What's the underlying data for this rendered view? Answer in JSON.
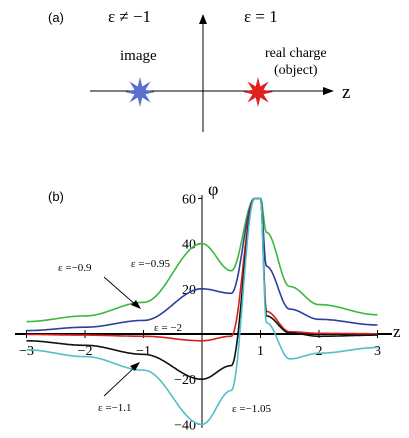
{
  "panel_a": {
    "label": "(a)",
    "eps_left": "ε ≠ −1",
    "eps_right": "ε  = 1",
    "image_label": "image",
    "real_label_1": "real charge",
    "real_label_2": "(object)",
    "axis_label": "z",
    "colors": {
      "image_star": "#5a6fcf",
      "real_star": "#e02020"
    }
  },
  "panel_b": {
    "label": "(b)",
    "y_axis_label": "φ",
    "x_axis_label": "z",
    "annotations": {
      "eps_m09": "ε =−0.9",
      "eps_m095": "ε =−0.95",
      "eps_m2": "ε = −2",
      "eps_m11": "ε =−1.1",
      "eps_m105": "ε =−1.05"
    }
  },
  "chart_data": {
    "type": "line",
    "title": "",
    "xlabel": "z",
    "ylabel": "φ",
    "xlim": [
      -3,
      3
    ],
    "ylim": [
      -40,
      60
    ],
    "x_ticks": [
      -3,
      -2,
      -1,
      1,
      2,
      3
    ],
    "x_tick_labels": [
      "−3",
      "−2",
      "−1",
      "1",
      "2",
      "3"
    ],
    "y_ticks": [
      -40,
      -20,
      20,
      40,
      60
    ],
    "y_tick_labels": [
      "−40",
      "−20",
      "20",
      "40",
      "60"
    ],
    "grid": false,
    "series": [
      {
        "name": "ε =−0.95",
        "color": "#3cb83c",
        "peak_at_origin": 40,
        "x": [
          -3,
          -2,
          -1,
          0,
          0.5,
          0.9,
          1,
          1.1,
          1.5,
          2,
          3
        ],
        "y": [
          5.5,
          8,
          14,
          40,
          28,
          60,
          60,
          45,
          21,
          13,
          8.5
        ]
      },
      {
        "name": "ε =−0.9",
        "color": "#2c3f9c",
        "peak_at_origin": 20,
        "x": [
          -3,
          -2,
          -1,
          0,
          0.5,
          0.9,
          1,
          1.1,
          1.5,
          2,
          3
        ],
        "y": [
          1.5,
          3,
          6,
          20,
          18,
          60,
          60,
          30,
          11,
          6.5,
          4
        ]
      },
      {
        "name": "ε = −2",
        "color": "#d42020",
        "peak_at_origin": -3,
        "x": [
          -3,
          -2,
          -1,
          0,
          0.5,
          0.9,
          1,
          1.1,
          1.5,
          2,
          3
        ],
        "y": [
          -0.2,
          -0.5,
          -1,
          -3,
          -1,
          60,
          60,
          10,
          1,
          0.3,
          0.1
        ]
      },
      {
        "name": "ε =−1.1",
        "color": "#111111",
        "peak_at_origin": -20,
        "x": [
          -3,
          -2,
          -1,
          0,
          0.5,
          0.9,
          1,
          1.1,
          1.5,
          2,
          3
        ],
        "y": [
          -3,
          -5,
          -9,
          -20,
          -14,
          60,
          60,
          8,
          0.5,
          -1,
          -0.5
        ]
      },
      {
        "name": "ε =−1.05",
        "color": "#50c0c8",
        "peak_at_origin": -40,
        "x": [
          -3,
          -2,
          -1,
          0,
          0.5,
          0.9,
          1,
          1.1,
          1.5,
          2,
          3
        ],
        "y": [
          -7,
          -10,
          -16,
          -40,
          -25,
          60,
          60,
          5,
          -11,
          -8.5,
          -6
        ]
      }
    ]
  }
}
